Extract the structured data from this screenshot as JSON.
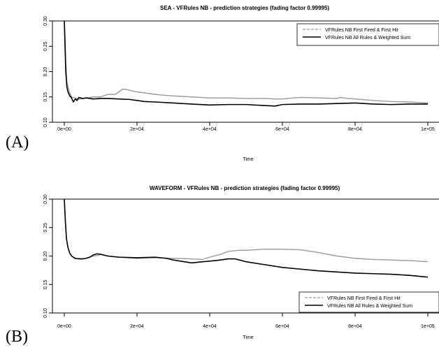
{
  "chart_data": [
    {
      "type": "line",
      "panel_label": "(A)",
      "title": "SEA - VFRules NB - prediction strategies (fading factor 0.99995)",
      "xlabel": "Time",
      "ylabel": "",
      "xlim": [
        0,
        100000
      ],
      "ylim": [
        0.1,
        0.3
      ],
      "xticks": [
        0,
        20000,
        40000,
        60000,
        80000,
        100000
      ],
      "xtick_labels": [
        "0e+00",
        "2e+04",
        "4e+04",
        "6e+04",
        "8e+04",
        "1e+05"
      ],
      "yticks": [
        0.1,
        0.15,
        0.2,
        0.25,
        0.3
      ],
      "ytick_labels": [
        "0.10",
        "0.15",
        "0.20",
        "0.25",
        "0.30"
      ],
      "legend_position": "top-right",
      "series": [
        {
          "name": "VFRules NB First Fired & First Hit",
          "color": "#9a9a9a",
          "style": "dashed",
          "x": [
            0,
            200,
            400,
            700,
            1000,
            1500,
            2000,
            3000,
            4000,
            5000,
            6000,
            8000,
            10000,
            12000,
            14000,
            15000,
            16000,
            17000,
            18000,
            20000,
            22000,
            25000,
            28000,
            30000,
            35000,
            40000,
            45000,
            50000,
            55000,
            58000,
            60000,
            63000,
            65000,
            70000,
            75000,
            76000,
            78000,
            80000,
            85000,
            90000,
            95000,
            100000
          ],
          "y": [
            0.3,
            0.27,
            0.22,
            0.18,
            0.17,
            0.158,
            0.15,
            0.148,
            0.145,
            0.147,
            0.148,
            0.15,
            0.15,
            0.155,
            0.155,
            0.16,
            0.165,
            0.165,
            0.163,
            0.16,
            0.158,
            0.155,
            0.153,
            0.152,
            0.15,
            0.148,
            0.148,
            0.147,
            0.147,
            0.146,
            0.146,
            0.148,
            0.149,
            0.148,
            0.147,
            0.149,
            0.147,
            0.146,
            0.143,
            0.141,
            0.14,
            0.138
          ]
        },
        {
          "name": "VFRules NB All Rules & Weighted Sum",
          "color": "#000000",
          "style": "solid",
          "x": [
            0,
            200,
            400,
            700,
            1000,
            1500,
            2000,
            2500,
            3000,
            3500,
            4000,
            5000,
            6000,
            8000,
            10000,
            12000,
            15000,
            18000,
            20000,
            22000,
            25000,
            30000,
            35000,
            40000,
            45000,
            50000,
            55000,
            58000,
            60000,
            65000,
            70000,
            75000,
            80000,
            85000,
            90000,
            95000,
            100000
          ],
          "y": [
            0.3,
            0.25,
            0.2,
            0.17,
            0.16,
            0.152,
            0.148,
            0.14,
            0.146,
            0.143,
            0.149,
            0.147,
            0.148,
            0.146,
            0.147,
            0.147,
            0.146,
            0.145,
            0.143,
            0.141,
            0.14,
            0.138,
            0.136,
            0.134,
            0.135,
            0.135,
            0.133,
            0.132,
            0.135,
            0.136,
            0.136,
            0.137,
            0.138,
            0.136,
            0.135,
            0.136,
            0.136
          ]
        }
      ]
    },
    {
      "type": "line",
      "panel_label": "(B)",
      "title": "WAVEFORM - VFRules NB - prediction strategies (fading factor 0.99995)",
      "xlabel": "Time",
      "ylabel": "",
      "xlim": [
        0,
        100000
      ],
      "ylim": [
        0.1,
        0.3
      ],
      "xticks": [
        0,
        20000,
        40000,
        60000,
        80000,
        100000
      ],
      "xtick_labels": [
        "0e+00",
        "2e+04",
        "4e+04",
        "6e+04",
        "8e+04",
        "1e+05"
      ],
      "yticks": [
        0.1,
        0.15,
        0.2,
        0.25,
        0.3
      ],
      "ytick_labels": [
        "0.10",
        "0.15",
        "0.20",
        "0.25",
        "0.30"
      ],
      "legend_position": "bottom-right",
      "series": [
        {
          "name": "VFRules NB First Fired & First Hit",
          "color": "#9a9a9a",
          "style": "dashed",
          "x": [
            0,
            300,
            600,
            1000,
            1500,
            2000,
            3000,
            4000,
            5000,
            6000,
            7000,
            8000,
            9000,
            10000,
            12000,
            15000,
            20000,
            25000,
            30000,
            35000,
            38000,
            40000,
            43000,
            45000,
            48000,
            50000,
            55000,
            60000,
            65000,
            70000,
            75000,
            80000,
            85000,
            90000,
            95000,
            100000
          ],
          "y": [
            0.3,
            0.26,
            0.23,
            0.215,
            0.205,
            0.2,
            0.195,
            0.196,
            0.195,
            0.196,
            0.198,
            0.2,
            0.201,
            0.203,
            0.2,
            0.198,
            0.196,
            0.197,
            0.196,
            0.195,
            0.194,
            0.198,
            0.203,
            0.208,
            0.21,
            0.21,
            0.212,
            0.212,
            0.211,
            0.206,
            0.2,
            0.196,
            0.194,
            0.193,
            0.192,
            0.19
          ]
        },
        {
          "name": "VFRules NB All Rules & Weighted Sum",
          "color": "#000000",
          "style": "solid",
          "x": [
            0,
            300,
            600,
            1000,
            1500,
            2000,
            3000,
            4000,
            5000,
            6000,
            7000,
            8000,
            9000,
            10000,
            12000,
            15000,
            20000,
            25000,
            28000,
            30000,
            33000,
            35000,
            38000,
            40000,
            43000,
            45000,
            47000,
            50000,
            55000,
            60000,
            65000,
            70000,
            75000,
            80000,
            85000,
            90000,
            95000,
            100000
          ],
          "y": [
            0.3,
            0.26,
            0.23,
            0.215,
            0.205,
            0.2,
            0.196,
            0.195,
            0.195,
            0.196,
            0.198,
            0.202,
            0.204,
            0.203,
            0.2,
            0.198,
            0.197,
            0.198,
            0.196,
            0.193,
            0.19,
            0.188,
            0.19,
            0.191,
            0.193,
            0.195,
            0.195,
            0.19,
            0.185,
            0.18,
            0.177,
            0.174,
            0.172,
            0.17,
            0.169,
            0.168,
            0.166,
            0.163
          ]
        }
      ]
    }
  ]
}
